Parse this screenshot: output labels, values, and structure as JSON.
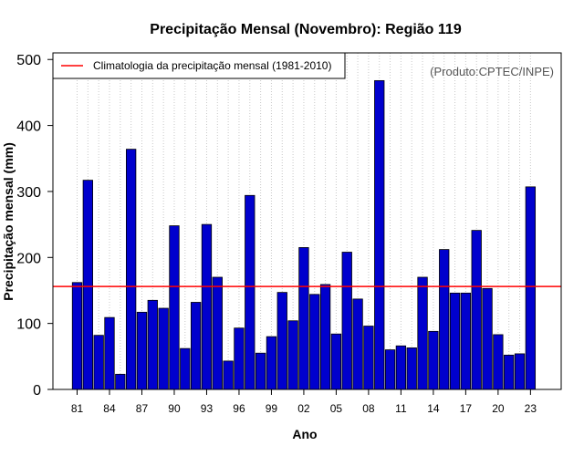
{
  "chart_data": {
    "type": "bar",
    "title": "Precipitação Mensal (Novembro): Região 119",
    "xlabel": "Ano",
    "ylabel": "Precipitação mensal (mm)",
    "ylim": [
      0,
      510
    ],
    "yticks": [
      0,
      100,
      200,
      300,
      400,
      500
    ],
    "categories": [
      "81",
      "82",
      "83",
      "84",
      "85",
      "86",
      "87",
      "88",
      "89",
      "90",
      "91",
      "92",
      "93",
      "94",
      "95",
      "96",
      "97",
      "98",
      "99",
      "00",
      "01",
      "02",
      "03",
      "04",
      "05",
      "06",
      "07",
      "08",
      "09",
      "10",
      "11",
      "12",
      "13",
      "14",
      "15",
      "16",
      "17",
      "18",
      "19",
      "20",
      "21",
      "22",
      "23"
    ],
    "xtick_labels": [
      "81",
      "84",
      "87",
      "90",
      "93",
      "96",
      "99",
      "02",
      "05",
      "08",
      "11",
      "14",
      "17",
      "20",
      "23"
    ],
    "values": [
      162,
      317,
      82,
      109,
      23,
      364,
      117,
      135,
      123,
      248,
      62,
      132,
      250,
      170,
      43,
      93,
      294,
      55,
      80,
      147,
      104,
      215,
      144,
      159,
      84,
      208,
      137,
      96,
      468,
      60,
      66,
      63,
      170,
      88,
      212,
      146,
      146,
      241,
      153,
      83,
      52,
      54,
      307
    ],
    "bar_color": "#0000CD",
    "climatology": {
      "label": "Climatologia da precipitação mensal (1981-2010)",
      "value": 156,
      "color": "#FF0000"
    },
    "legend_position": "top-left",
    "grid": "vertical dotted",
    "credit": "(Produto:CPTEC/INPE)"
  }
}
